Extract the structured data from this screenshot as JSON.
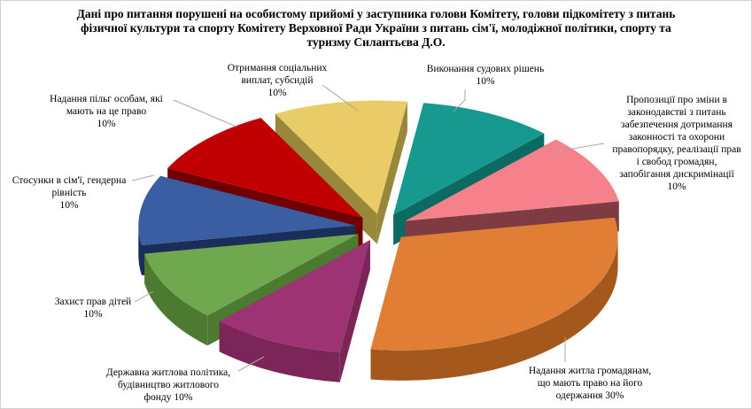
{
  "header": {
    "title": "Дані про питання порушені на особистому прийомі у заступника голови Комітету, голови підкомітету з питань фізичної культури та спорту Комітету Верховної Ради України з питань сім'ї, молодіжної політики, спорту та туризму Силантьєва Д.О."
  },
  "colors": {
    "background": "#FFFFFF",
    "border": "#D0D0D0",
    "leader_line": "#A6A6A6"
  },
  "chart_data": {
    "type": "pie",
    "style": "3d-exploded",
    "title": "Дані про питання порушені на особистому прийомі у заступника голови Комітету, голови підкомітету з питань фізичної культури та спорту Комітету Верховної Ради України з питань сім'ї, молодіжної політики, спорту та туризму Силантьєва Д.О.",
    "unit": "%",
    "direction": "clockwise",
    "start_angle_deg": 8,
    "legend_position": "none",
    "data_labels": "category name + percent, outside with leader lines",
    "leader_line_color": "#A6A6A6",
    "slices": [
      {
        "name": "Виконання судових рішень",
        "value": 10,
        "color": "#17998F",
        "side_color": "#0B6B63",
        "label_lines": [
          "Виконання судових рішень",
          "10%"
        ]
      },
      {
        "name": "Пропозиції про зміни в законодавстві з питань забезпечення дотримання законності та охорони правопорядку, реалізації прав і свобод громадян, запобігання дискримінації",
        "value": 10,
        "color": "#F5828A",
        "side_color": "#7E3B42",
        "label_lines": [
          "Пропозиції про зміни в",
          "законодавстві з питань",
          "забезпечення дотримання",
          "законності та охорони",
          "правопорядку, реалізації прав",
          "і свобод громадян,",
          "запобігання дискримінації",
          "10%"
        ]
      },
      {
        "name": "Надання житла громадянам, що мають право на його одержання",
        "value": 30,
        "color": "#E07E35",
        "side_color": "#A4581C",
        "label_lines": [
          "Надання житла громадянам,",
          "що мають право на його",
          "одержання 30%"
        ]
      },
      {
        "name": "Державна житлова політика, будівництво житлового фонду",
        "value": 10,
        "color": "#9D3372",
        "side_color": "#7C2558",
        "label_lines": [
          "Державна житлова політика,",
          "будівництво житлового",
          "фонду 10%"
        ]
      },
      {
        "name": "Захист прав дітей",
        "value": 10,
        "color": "#70A850",
        "side_color": "#4C7A30",
        "label_lines": [
          "Захист прав дітей",
          "10%"
        ]
      },
      {
        "name": "Стосунки в сім'ї, гендерна рівність",
        "value": 10,
        "color": "#3B5EA3",
        "side_color": "#1B2E59",
        "label_lines": [
          "Стосунки в сім'ї, гендерна",
          "рівність",
          "10%"
        ]
      },
      {
        "name": "Надання пільг особам, які мають на це право",
        "value": 10,
        "color": "#C00000",
        "side_color": "#700000",
        "label_lines": [
          "Надання пільг  особам, які",
          "мають на це право",
          "10%"
        ]
      },
      {
        "name": "Отримання соціальних виплат, субсидій",
        "value": 10,
        "color": "#E9CB67",
        "side_color": "#99873C",
        "label_lines": [
          "Отримання соціальних",
          "виплат, субсидій",
          "10%"
        ]
      }
    ]
  }
}
